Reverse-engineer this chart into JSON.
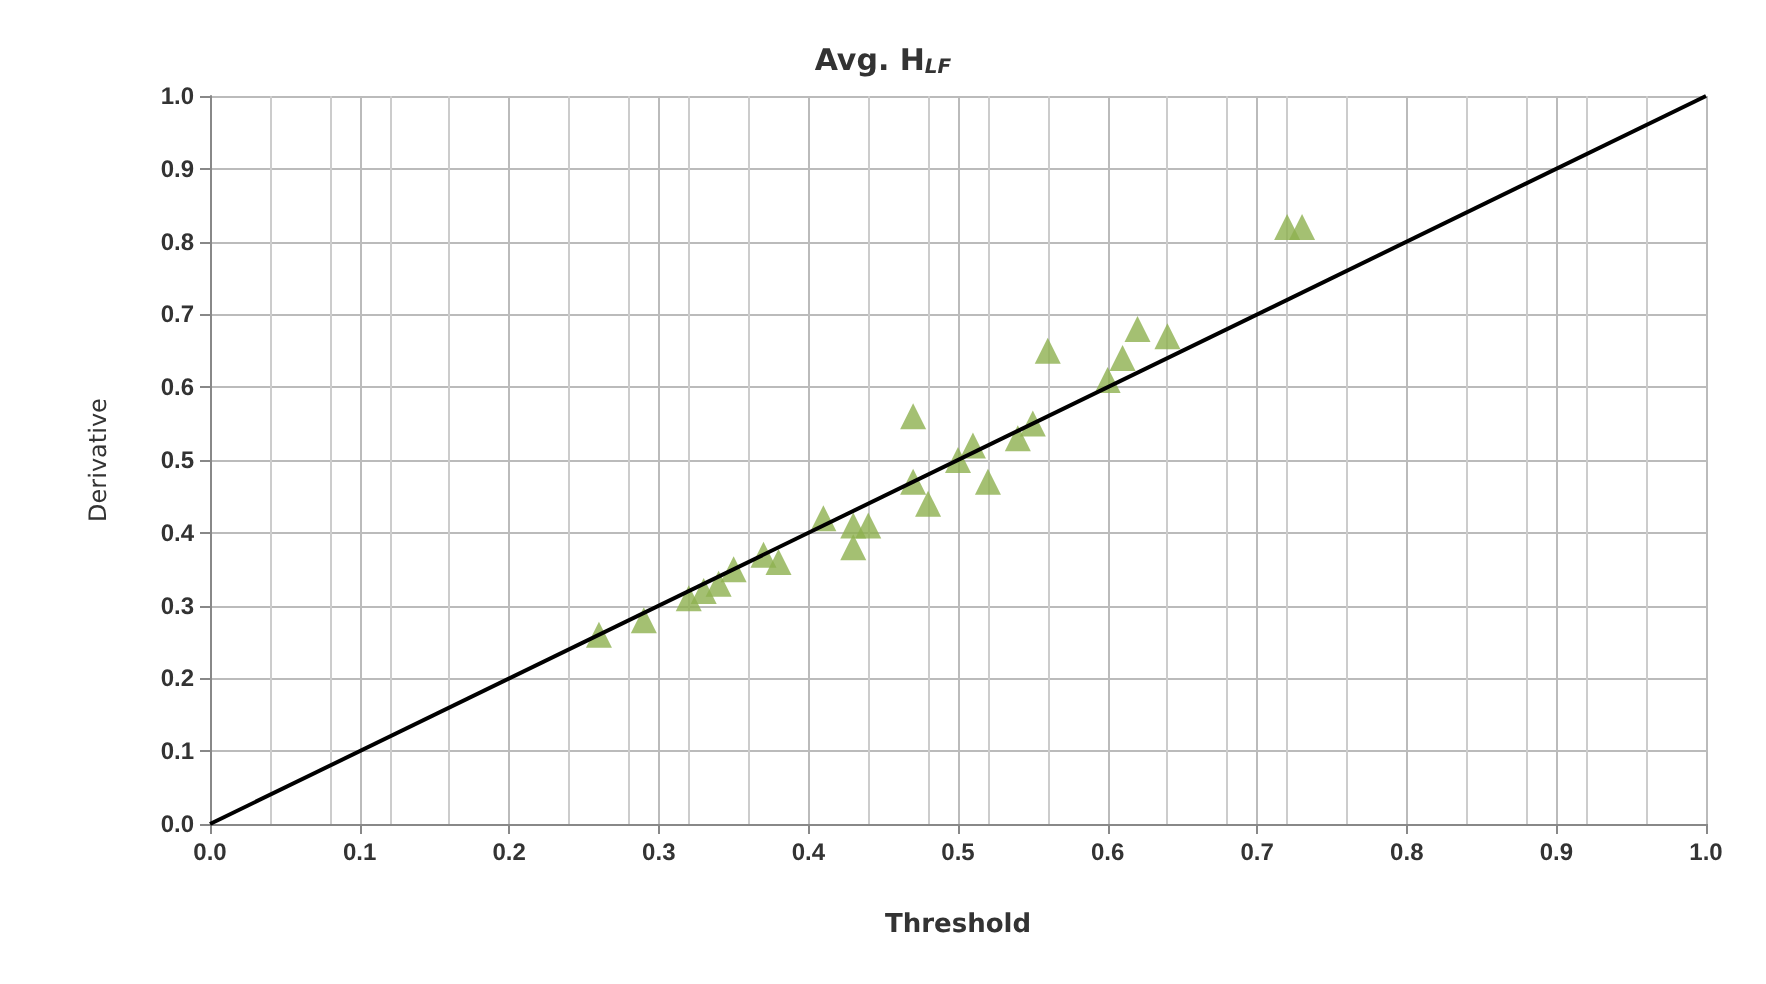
{
  "chart_data": {
    "type": "scatter",
    "title": "Avg. H$_{LF}$",
    "xlabel": "Threshold",
    "ylabel": "Derivative",
    "xlim": [
      0,
      1
    ],
    "xticks": [
      {
        "value": 0,
        "label": "0.0"
      },
      0.1,
      0.2,
      0.3,
      0.4,
      0.5,
      0.6,
      0.7,
      0.8,
      0.9,
      {
        "value": 1,
        "label": "1.0"
      }
    ],
    "ylim": [
      0,
      1
    ],
    "yticks": [
      {
        "value": 0,
        "label": "0.0"
      },
      0.1,
      0.2,
      0.3,
      0.4,
      0.5,
      0.6,
      0.7,
      0.8,
      0.9,
      {
        "value": 1,
        "label": "1.0"
      }
    ],
    "grid": true,
    "series": [
      {
        "color": "#8db04f",
        "marker": "triangle",
        "x": [
          0.26,
          0.29,
          0.32,
          0.33,
          0.34,
          0.35,
          0.37,
          0.38,
          0.41,
          0.43,
          0.43,
          0.44,
          0.47,
          0.47,
          0.48,
          0.5,
          0.51,
          0.52,
          0.54,
          0.55,
          0.56,
          0.6,
          0.61,
          0.62,
          0.64,
          0.72,
          0.73
        ],
        "values": [
          0.26,
          0.28,
          0.31,
          0.32,
          0.33,
          0.35,
          0.37,
          0.36,
          0.42,
          0.41,
          0.38,
          0.41,
          0.47,
          0.56,
          0.44,
          0.5,
          0.52,
          0.47,
          0.53,
          0.55,
          0.65,
          0.61,
          0.64,
          0.68,
          0.67,
          0.82,
          0.82
        ]
      },
      {
        "type": "line",
        "color": "#000000",
        "marker": "none",
        "line_style": "solid",
        "x": [
          0,
          1
        ],
        "values": [
          0,
          1
        ]
      }
    ]
  }
}
